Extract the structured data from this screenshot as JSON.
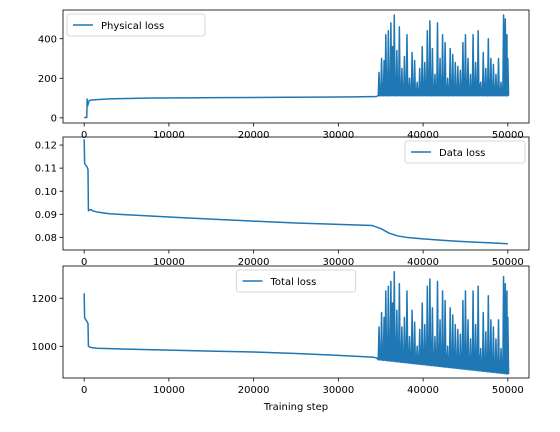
{
  "chart_data": [
    {
      "type": "line",
      "title": "",
      "xlabel": "",
      "ylabel": "",
      "xlim": [
        -2500,
        52500
      ],
      "ylim": [
        -26,
        545
      ],
      "xticks": [
        0,
        10000,
        20000,
        30000,
        40000,
        50000
      ],
      "yticks": [
        0,
        200,
        400
      ],
      "color": "#1f77b4",
      "grid": false,
      "legend": {
        "position": "top-left"
      },
      "series": [
        {
          "name": "Physical loss",
          "points": [
            [
              0,
              2
            ],
            [
              300,
              2
            ],
            [
              350,
              95
            ],
            [
              400,
              60
            ],
            [
              600,
              88
            ],
            [
              900,
              90
            ],
            [
              1500,
              92
            ],
            [
              3000,
              96
            ],
            [
              5000,
              98
            ],
            [
              8000,
              100
            ],
            [
              12000,
              101
            ],
            [
              16000,
              102
            ],
            [
              20000,
              103
            ],
            [
              24000,
              104
            ],
            [
              28000,
              105
            ],
            [
              32000,
              106
            ],
            [
              34500,
              108
            ]
          ],
          "oscillation": {
            "x_start": 34500,
            "x_end": 50000,
            "low": 112,
            "spikes": [
              [
                34800,
                230
              ],
              [
                35100,
                300
              ],
              [
                35400,
                290
              ],
              [
                35600,
                420
              ],
              [
                35900,
                440
              ],
              [
                36200,
                480
              ],
              [
                36400,
                360
              ],
              [
                36600,
                520
              ],
              [
                36900,
                340
              ],
              [
                37200,
                460
              ],
              [
                37500,
                250
              ],
              [
                37800,
                310
              ],
              [
                38100,
                420
              ],
              [
                38400,
                200
              ],
              [
                38700,
                330
              ],
              [
                39000,
                290
              ],
              [
                39300,
                180
              ],
              [
                39600,
                250
              ],
              [
                39900,
                360
              ],
              [
                40200,
                280
              ],
              [
                40500,
                440
              ],
              [
                40800,
                490
              ],
              [
                41100,
                350
              ],
              [
                41400,
                220
              ],
              [
                41700,
                480
              ],
              [
                42000,
                300
              ],
              [
                42300,
                420
              ],
              [
                42600,
                380
              ],
              [
                42900,
                200
              ],
              [
                43200,
                350
              ],
              [
                43500,
                320
              ],
              [
                43800,
                280
              ],
              [
                44100,
                260
              ],
              [
                44400,
                240
              ],
              [
                44700,
                380
              ],
              [
                45000,
                420
              ],
              [
                45300,
                300
              ],
              [
                45600,
                220
              ],
              [
                45900,
                420
              ],
              [
                46200,
                280
              ],
              [
                46500,
                440
              ],
              [
                46800,
                180
              ],
              [
                47100,
                330
              ],
              [
                47400,
                250
              ],
              [
                47700,
                400
              ],
              [
                48000,
                300
              ],
              [
                48300,
                270
              ],
              [
                48600,
                220
              ],
              [
                48900,
                300
              ],
              [
                49200,
                180
              ],
              [
                49500,
                520
              ],
              [
                49700,
                500
              ],
              [
                49900,
                420
              ],
              [
                50000,
                300
              ]
            ]
          }
        }
      ]
    },
    {
      "type": "line",
      "title": "",
      "xlabel": "",
      "ylabel": "",
      "xlim": [
        -2500,
        52500
      ],
      "ylim": [
        0.0745,
        0.1235
      ],
      "xticks": [
        0,
        10000,
        20000,
        30000,
        40000,
        50000
      ],
      "yticks": [
        0.08,
        0.09,
        0.1,
        0.11,
        0.12
      ],
      "color": "#1f77b4",
      "grid": false,
      "legend": {
        "position": "top-right"
      },
      "series": [
        {
          "name": "Data loss",
          "points": [
            [
              0,
              0.1225
            ],
            [
              50,
              0.112
            ],
            [
              150,
              0.1115
            ],
            [
              300,
              0.1108
            ],
            [
              450,
              0.1095
            ],
            [
              500,
              0.0915
            ],
            [
              600,
              0.0918
            ],
            [
              800,
              0.092
            ],
            [
              1000,
              0.0915
            ],
            [
              1500,
              0.091
            ],
            [
              3000,
              0.0902
            ],
            [
              5000,
              0.0898
            ],
            [
              10000,
              0.0888
            ],
            [
              15000,
              0.0879
            ],
            [
              20000,
              0.087
            ],
            [
              25000,
              0.0862
            ],
            [
              30000,
              0.0856
            ],
            [
              34000,
              0.0851
            ],
            [
              35000,
              0.0838
            ],
            [
              36000,
              0.0818
            ],
            [
              37000,
              0.0806
            ],
            [
              38000,
              0.08
            ],
            [
              40000,
              0.0793
            ],
            [
              42000,
              0.0788
            ],
            [
              44000,
              0.0783
            ],
            [
              46000,
              0.0779
            ],
            [
              48000,
              0.0776
            ],
            [
              50000,
              0.0772
            ]
          ]
        }
      ]
    },
    {
      "type": "line",
      "title": "",
      "xlabel": "Training step",
      "ylabel": "",
      "xlim": [
        -2500,
        52500
      ],
      "ylim": [
        868,
        1334
      ],
      "xticks": [
        0,
        10000,
        20000,
        30000,
        40000,
        50000
      ],
      "yticks": [
        1000,
        1200
      ],
      "color": "#1f77b4",
      "grid": false,
      "legend": {
        "position": "top-center"
      },
      "series": [
        {
          "name": "Total loss",
          "points": [
            [
              0,
              1220
            ],
            [
              50,
              1120
            ],
            [
              150,
              1112
            ],
            [
              300,
              1105
            ],
            [
              450,
              1095
            ],
            [
              500,
              1000
            ],
            [
              700,
              996
            ],
            [
              1000,
              994
            ],
            [
              1500,
              992
            ],
            [
              3000,
              990
            ],
            [
              5000,
              988
            ],
            [
              10000,
              984
            ],
            [
              15000,
              980
            ],
            [
              20000,
              976
            ],
            [
              25000,
              970
            ],
            [
              30000,
              962
            ],
            [
              34000,
              955
            ],
            [
              34500,
              952
            ]
          ],
          "oscillation": {
            "x_start": 34500,
            "x_end": 50000,
            "low_start": 945,
            "low_end": 885,
            "spikes": [
              [
                34800,
                1080
              ],
              [
                35100,
                1140
              ],
              [
                35400,
                1120
              ],
              [
                35600,
                1230
              ],
              [
                35900,
                1250
              ],
              [
                36200,
                1270
              ],
              [
                36400,
                1180
              ],
              [
                36600,
                1310
              ],
              [
                36900,
                1150
              ],
              [
                37200,
                1260
              ],
              [
                37500,
                1080
              ],
              [
                37800,
                1120
              ],
              [
                38100,
                1230
              ],
              [
                38400,
                1040
              ],
              [
                38700,
                1150
              ],
              [
                39000,
                1100
              ],
              [
                39300,
                1000
              ],
              [
                39600,
                1070
              ],
              [
                39900,
                1180
              ],
              [
                40200,
                1090
              ],
              [
                40500,
                1250
              ],
              [
                40800,
                1280
              ],
              [
                41100,
                1160
              ],
              [
                41400,
                1040
              ],
              [
                41700,
                1270
              ],
              [
                42000,
                1110
              ],
              [
                42300,
                1230
              ],
              [
                42600,
                1190
              ],
              [
                42900,
                1000
              ],
              [
                43200,
                1160
              ],
              [
                43500,
                1130
              ],
              [
                43800,
                1090
              ],
              [
                44100,
                1070
              ],
              [
                44400,
                1050
              ],
              [
                44700,
                1190
              ],
              [
                45000,
                1230
              ],
              [
                45300,
                1110
              ],
              [
                45600,
                1030
              ],
              [
                45900,
                1230
              ],
              [
                46200,
                1090
              ],
              [
                46500,
                1250
              ],
              [
                46800,
                990
              ],
              [
                47100,
                1140
              ],
              [
                47400,
                1060
              ],
              [
                47700,
                1210
              ],
              [
                48000,
                1110
              ],
              [
                48300,
                1080
              ],
              [
                48600,
                1030
              ],
              [
                48900,
                1110
              ],
              [
                49200,
                990
              ],
              [
                49500,
                1290
              ],
              [
                49700,
                1260
              ],
              [
                49900,
                1230
              ],
              [
                50000,
                1120
              ]
            ]
          }
        }
      ]
    }
  ]
}
